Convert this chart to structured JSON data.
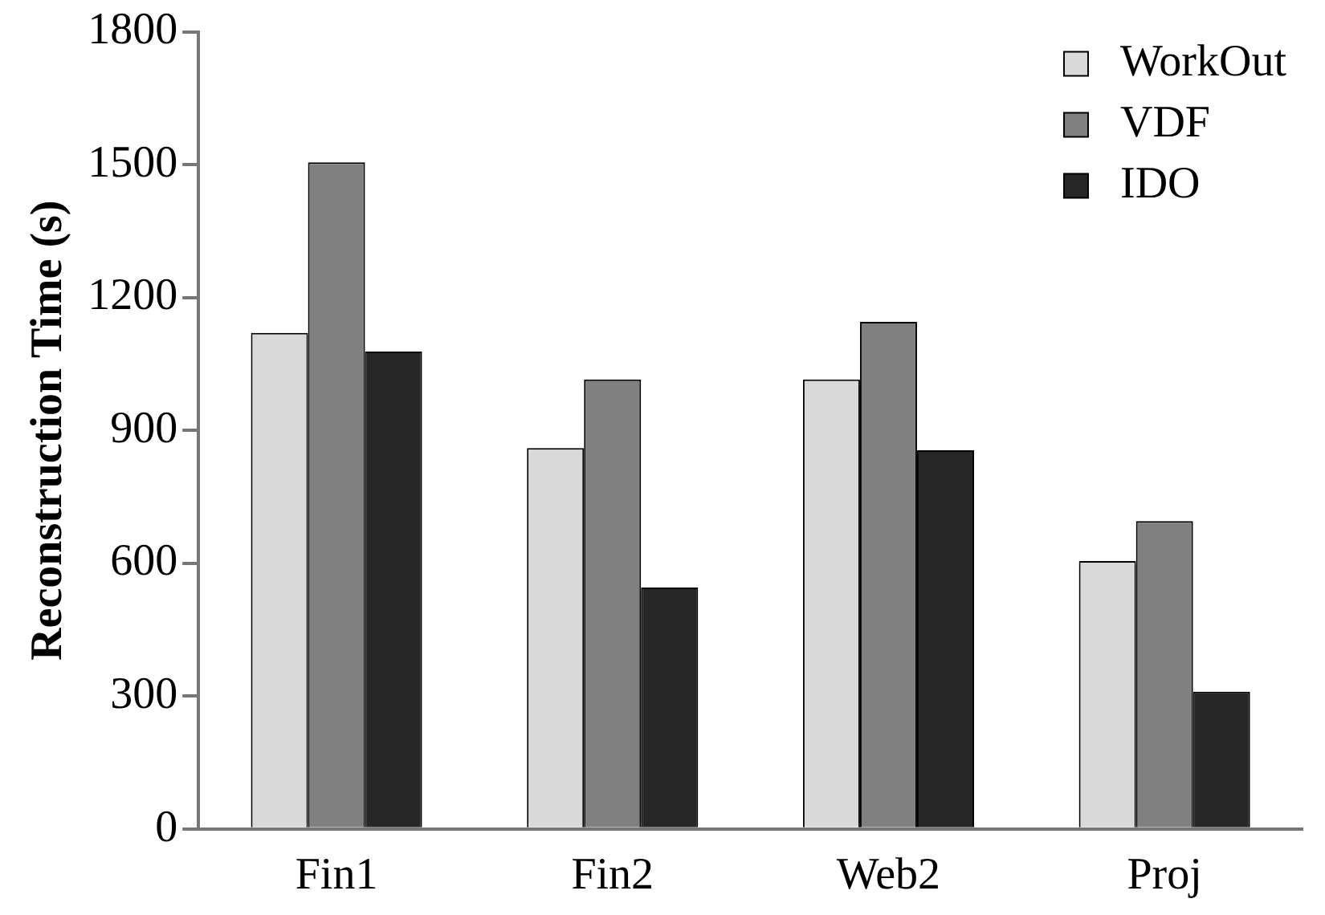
{
  "chart_data": {
    "type": "bar",
    "ylabel": "Reconstruction Time (s)",
    "categories": [
      "Fin1",
      "Fin2",
      "Web2",
      "Proj"
    ],
    "series": [
      {
        "name": "WorkOut",
        "color": "#d9d9d9",
        "values": [
          1120,
          860,
          1015,
          605
        ]
      },
      {
        "name": "VDF",
        "color": "#808080",
        "values": [
          1505,
          1015,
          1145,
          695
        ]
      },
      {
        "name": "IDO",
        "color": "#262626",
        "values": [
          1078,
          545,
          855,
          310
        ]
      }
    ],
    "ylim": [
      0,
      1800
    ],
    "yticks": [
      0,
      300,
      600,
      900,
      1200,
      1500,
      1800
    ],
    "grid": false,
    "legend": "top right"
  }
}
